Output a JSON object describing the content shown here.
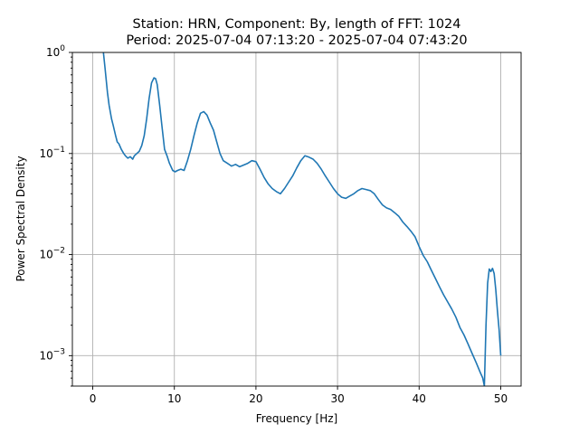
{
  "chart_data": {
    "type": "line",
    "title_line1": "Station: HRN, Component: By, length of FFT: 1024",
    "title_line2": "Period: 2025-07-04 07:13:20 - 2025-07-04 07:43:20",
    "xlabel": "Frequency [Hz]",
    "ylabel": "Power Spectral Density",
    "yscale": "log",
    "xlim": [
      -2.5,
      52.5
    ],
    "ylim": [
      0.0005,
      1
    ],
    "grid": true,
    "x_ticks": [
      {
        "value": 0,
        "label": "0"
      },
      {
        "value": 10,
        "label": "10"
      },
      {
        "value": 20,
        "label": "20"
      },
      {
        "value": 30,
        "label": "30"
      },
      {
        "value": 40,
        "label": "40"
      },
      {
        "value": 50,
        "label": "50"
      }
    ],
    "y_ticks": [
      {
        "value": 0.001,
        "base": "10",
        "exp": "−3"
      },
      {
        "value": 0.01,
        "base": "10",
        "exp": "−2"
      },
      {
        "value": 0.1,
        "base": "10",
        "exp": "−1"
      },
      {
        "value": 1,
        "base": "10",
        "exp": "0"
      }
    ],
    "line_color": "#1f77b4",
    "series": [
      {
        "x": [
          1.3,
          1.5,
          1.8,
          2.0,
          2.3,
          2.5,
          2.8,
          3.0,
          3.2,
          3.5,
          3.8,
          4.0,
          4.3,
          4.6,
          4.9,
          5.1,
          5.4,
          5.7,
          6.0,
          6.3,
          6.6,
          6.9,
          7.2,
          7.5,
          7.7,
          7.9,
          8.2,
          8.5,
          8.8,
          9.1,
          9.4,
          9.8,
          10.1,
          10.4,
          10.8,
          11.2,
          11.6,
          12.0,
          12.4,
          12.8,
          13.2,
          13.6,
          14.0,
          14.4,
          14.8,
          15.2,
          15.6,
          16.0,
          16.5,
          17.0,
          17.5,
          18.0,
          18.5,
          19.0,
          19.5,
          20.0,
          20.5,
          21.0,
          21.5,
          22.0,
          22.5,
          23.0,
          23.5,
          24.0,
          24.5,
          25.0,
          25.5,
          26.0,
          26.5,
          27.0,
          27.5,
          28.0,
          28.5,
          29.0,
          29.5,
          30.0,
          30.5,
          31.0,
          31.5,
          32.0,
          32.5,
          33.0,
          33.5,
          34.0,
          34.5,
          35.0,
          35.5,
          36.0,
          36.5,
          37.0,
          37.5,
          38.0,
          38.5,
          39.0,
          39.5,
          40.0,
          40.5,
          41.0,
          41.5,
          42.0,
          42.5,
          43.0,
          43.5,
          44.0,
          44.5,
          45.0,
          45.5,
          46.0,
          46.5,
          47.0,
          47.5,
          47.8,
          48.0,
          48.2,
          48.4,
          48.6,
          48.8,
          49.0,
          49.2,
          49.4,
          49.6,
          49.8,
          50.0
        ],
        "y": [
          1.0,
          0.7,
          0.4,
          0.3,
          0.22,
          0.19,
          0.15,
          0.13,
          0.125,
          0.11,
          0.1,
          0.095,
          0.09,
          0.093,
          0.088,
          0.095,
          0.1,
          0.105,
          0.12,
          0.15,
          0.22,
          0.35,
          0.5,
          0.56,
          0.55,
          0.48,
          0.3,
          0.18,
          0.11,
          0.095,
          0.08,
          0.068,
          0.066,
          0.068,
          0.07,
          0.068,
          0.085,
          0.11,
          0.15,
          0.2,
          0.25,
          0.26,
          0.24,
          0.2,
          0.17,
          0.13,
          0.1,
          0.085,
          0.08,
          0.075,
          0.078,
          0.074,
          0.077,
          0.08,
          0.085,
          0.083,
          0.07,
          0.058,
          0.05,
          0.045,
          0.042,
          0.04,
          0.045,
          0.052,
          0.06,
          0.072,
          0.085,
          0.095,
          0.092,
          0.088,
          0.08,
          0.07,
          0.06,
          0.052,
          0.045,
          0.04,
          0.037,
          0.036,
          0.038,
          0.04,
          0.043,
          0.045,
          0.044,
          0.043,
          0.04,
          0.035,
          0.031,
          0.029,
          0.028,
          0.026,
          0.024,
          0.021,
          0.019,
          0.017,
          0.015,
          0.012,
          0.0098,
          0.0085,
          0.007,
          0.0058,
          0.0048,
          0.004,
          0.0034,
          0.0029,
          0.0024,
          0.0019,
          0.0016,
          0.0013,
          0.00105,
          0.00085,
          0.00068,
          0.0006,
          0.0005,
          0.002,
          0.0052,
          0.0072,
          0.0068,
          0.0073,
          0.0065,
          0.0045,
          0.0028,
          0.0018,
          0.001
        ]
      }
    ]
  }
}
